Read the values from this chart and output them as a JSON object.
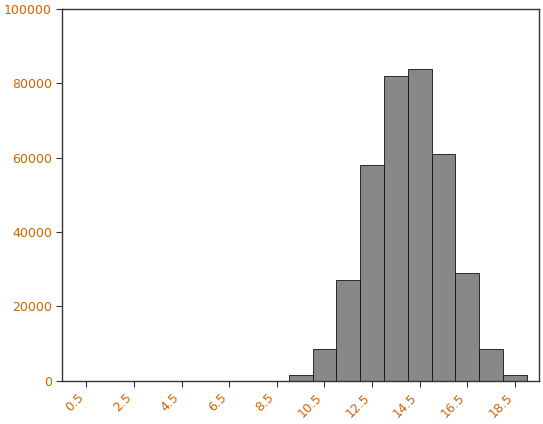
{
  "bin_edges": [
    9.0,
    10.0,
    11.0,
    12.0,
    13.0,
    14.0,
    15.0,
    16.0,
    17.0,
    18.0,
    19.0
  ],
  "counts": [
    1500,
    8500,
    27000,
    58000,
    82000,
    84000,
    61000,
    29000,
    8500,
    1500
  ],
  "bar_color": "#888888",
  "bar_edge_color": "#111111",
  "bar_linewidth": 0.6,
  "xlim": [
    -0.5,
    19.5
  ],
  "ylim": [
    0,
    100000
  ],
  "xticks": [
    0.5,
    2.5,
    4.5,
    6.5,
    8.5,
    10.5,
    12.5,
    14.5,
    16.5,
    18.5
  ],
  "yticks": [
    0,
    20000,
    40000,
    60000,
    80000,
    100000
  ],
  "ytick_labels": [
    "0",
    "20000",
    "40000",
    "60000",
    "80000",
    "100000"
  ],
  "background_color": "#ffffff",
  "grid": false,
  "spine_color": "#333333",
  "tick_label_color": "#cc6600",
  "tick_label_fontsize": 9,
  "figsize": [
    5.43,
    4.24
  ],
  "dpi": 100
}
